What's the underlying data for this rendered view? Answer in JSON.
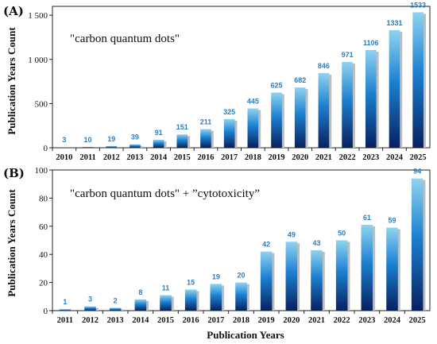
{
  "colors": {
    "label_blue": "#2a7fc1",
    "bar_top": "#8fd3f0",
    "bar_mid": "#1b7fd0",
    "bar_bottom": "#08205e",
    "shadow": "#bdbdbd"
  },
  "figure": {
    "xlabel": "Publication Years"
  },
  "chart_data": [
    {
      "type": "bar",
      "panel": "(A)",
      "annotation": "\"carbon quantum dots\"",
      "ylabel": "Publication Years Count",
      "xlabel": "",
      "ylim": [
        0,
        1600
      ],
      "yticks": [
        0,
        500,
        1000,
        1500
      ],
      "ytick_labels": [
        "0",
        "500",
        "1 000",
        "1 500"
      ],
      "categories": [
        "2010",
        "2011",
        "2012",
        "2013",
        "2014",
        "2015",
        "2016",
        "2017",
        "2018",
        "2019",
        "2020",
        "2021",
        "2022",
        "2023",
        "2024",
        "2025"
      ],
      "values": [
        3,
        10,
        19,
        39,
        91,
        151,
        211,
        325,
        445,
        625,
        682,
        846,
        971,
        1106,
        1331,
        1533
      ],
      "data_labels": [
        "3",
        "10",
        "19",
        "39",
        "91",
        "151",
        "211",
        "325",
        "445",
        "625",
        "682",
        "846",
        "971",
        "1106",
        "1331",
        "1533"
      ],
      "grid": false
    },
    {
      "type": "bar",
      "panel": "(B)",
      "annotation": "\"carbon quantum dots\" + ”cytotoxicity”",
      "ylabel": "Publication Years Count",
      "xlabel": "Publication Years",
      "ylim": [
        0,
        100
      ],
      "yticks": [
        0,
        20,
        40,
        60,
        80,
        100
      ],
      "ytick_labels": [
        "0",
        "20",
        "40",
        "60",
        "80",
        "100"
      ],
      "categories": [
        "2011",
        "2012",
        "2013",
        "2014",
        "2015",
        "2016",
        "2017",
        "2018",
        "2019",
        "2020",
        "2021",
        "2022",
        "2023",
        "2024",
        "2025"
      ],
      "values": [
        1,
        3,
        2,
        8,
        11,
        15,
        19,
        20,
        42,
        49,
        43,
        50,
        61,
        59,
        94
      ],
      "data_labels": [
        "1",
        "3",
        "2",
        "8",
        "11",
        "15",
        "19",
        "20",
        "42",
        "49",
        "43",
        "50",
        "61",
        "59",
        "94"
      ],
      "grid": false
    }
  ]
}
